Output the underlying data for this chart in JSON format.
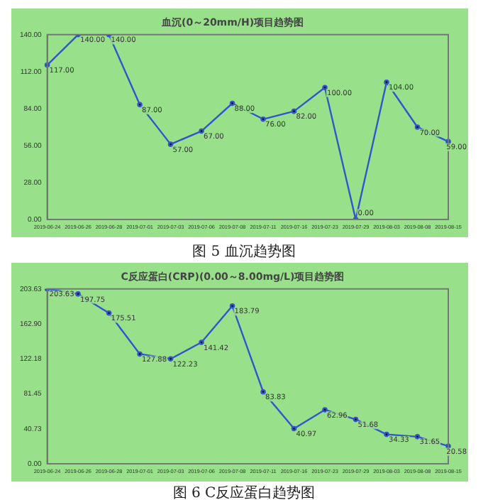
{
  "chart_data": [
    {
      "type": "line",
      "title": "血沉(0～20mm/H)项目趋势图",
      "categories": [
        "2019-06-24",
        "2019-06-26",
        "2019-06-28",
        "2019-07-01",
        "2019-07-03",
        "2019-07-06",
        "2019-07-08",
        "2019-07-11",
        "2019-07-16",
        "2019-07-23",
        "2019-07-29",
        "2019-08-03",
        "2019-08-08",
        "2019-08-15"
      ],
      "series": [
        {
          "color": "#3355cc",
          "values": [
            117,
            140,
            140,
            87,
            57,
            67,
            88,
            76,
            82,
            100,
            0,
            104,
            70,
            59
          ],
          "value_labels": [
            "117.00",
            "140.00",
            "140.00",
            "87.00",
            "57.00",
            "67.00",
            "88.00",
            "76.00",
            "82.00",
            "100.00",
            "0.00",
            "104.00",
            "70.00",
            "59.00"
          ]
        }
      ],
      "ylim": [
        0,
        140
      ],
      "yticks": [
        {
          "value": 0,
          "label": "0.00"
        },
        {
          "value": 28,
          "label": "28.00"
        },
        {
          "value": 56,
          "label": "56.00"
        },
        {
          "value": 84,
          "label": "84.00"
        },
        {
          "value": 112,
          "label": "112.00"
        },
        {
          "value": 140,
          "label": "140.00"
        }
      ],
      "marker": "circle",
      "annotations": [
        "图 5 血沉趋势图"
      ]
    },
    {
      "type": "line",
      "title": "C反应蛋白(CRP)(0.00～8.00mg/L)项目趋势图",
      "categories": [
        "2019-06-24",
        "2019-06-26",
        "2019-06-28",
        "2019-07-01",
        "2019-07-03",
        "2019-07-06",
        "2019-07-08",
        "2019-07-11",
        "2019-07-16",
        "2019-07-23",
        "2019-07-29",
        "2019-08-03",
        "2019-08-08",
        "2019-08-15"
      ],
      "series": [
        {
          "color": "#3355cc",
          "values": [
            203.63,
            197.75,
            175.51,
            127.88,
            122.23,
            141.42,
            183.79,
            83.83,
            40.97,
            62.96,
            51.68,
            34.33,
            31.65,
            20.58
          ],
          "value_labels": [
            "203.63",
            "197.75",
            "175.51",
            "127.88",
            "122.23",
            "141.42",
            "183.79",
            "83.83",
            "40.97",
            "62.96",
            "51.68",
            "34.33",
            "31.65",
            "20.58"
          ]
        }
      ],
      "ylim": [
        0,
        203.63
      ],
      "yticks": [
        {
          "value": 0,
          "label": "0.00"
        },
        {
          "value": 40.73,
          "label": "40.73"
        },
        {
          "value": 81.45,
          "label": "81.45"
        },
        {
          "value": 122.18,
          "label": "122.18"
        },
        {
          "value": 162.9,
          "label": "162.90"
        },
        {
          "value": 203.63,
          "label": "203.63"
        }
      ],
      "marker": "circle",
      "annotations": [
        "图 6 C反应蛋白趋势图"
      ]
    }
  ]
}
